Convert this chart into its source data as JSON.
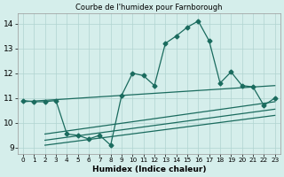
{
  "title": "Courbe de l'humidex pour Farnborough",
  "xlabel": "Humidex (Indice chaleur)",
  "background_color": "#d5eeeb",
  "grid_color": "#b0d4d0",
  "line_color": "#1a6b5e",
  "xlim": [
    -0.5,
    23.5
  ],
  "ylim": [
    8.75,
    14.4
  ],
  "yticks": [
    9,
    10,
    11,
    12,
    13,
    14
  ],
  "xtick_labels": [
    "0",
    "1",
    "2",
    "3",
    "4",
    "5",
    "6",
    "7",
    "8",
    "9",
    "10",
    "11",
    "12",
    "13",
    "14",
    "15",
    "16",
    "17",
    "18",
    "19",
    "20",
    "21",
    "22",
    "23"
  ],
  "main_x": [
    0,
    1,
    2,
    3,
    4,
    5,
    6,
    7,
    8,
    9,
    10,
    11,
    12,
    13,
    14,
    15,
    16,
    17,
    18,
    19,
    20,
    21,
    22,
    23
  ],
  "main_y": [
    10.9,
    10.85,
    10.85,
    10.9,
    9.55,
    9.5,
    9.35,
    9.5,
    9.1,
    11.1,
    12.0,
    11.9,
    11.5,
    13.2,
    13.5,
    13.85,
    14.1,
    13.3,
    11.6,
    12.05,
    11.5,
    11.45,
    10.7,
    11.0
  ],
  "line1_x": [
    0,
    23
  ],
  "line1_y": [
    10.85,
    11.5
  ],
  "line2_x": [
    2,
    23
  ],
  "line2_y": [
    9.55,
    10.85
  ],
  "line3_x": [
    2,
    23
  ],
  "line3_y": [
    9.3,
    10.55
  ],
  "line4_x": [
    2,
    23
  ],
  "line4_y": [
    9.1,
    10.3
  ]
}
